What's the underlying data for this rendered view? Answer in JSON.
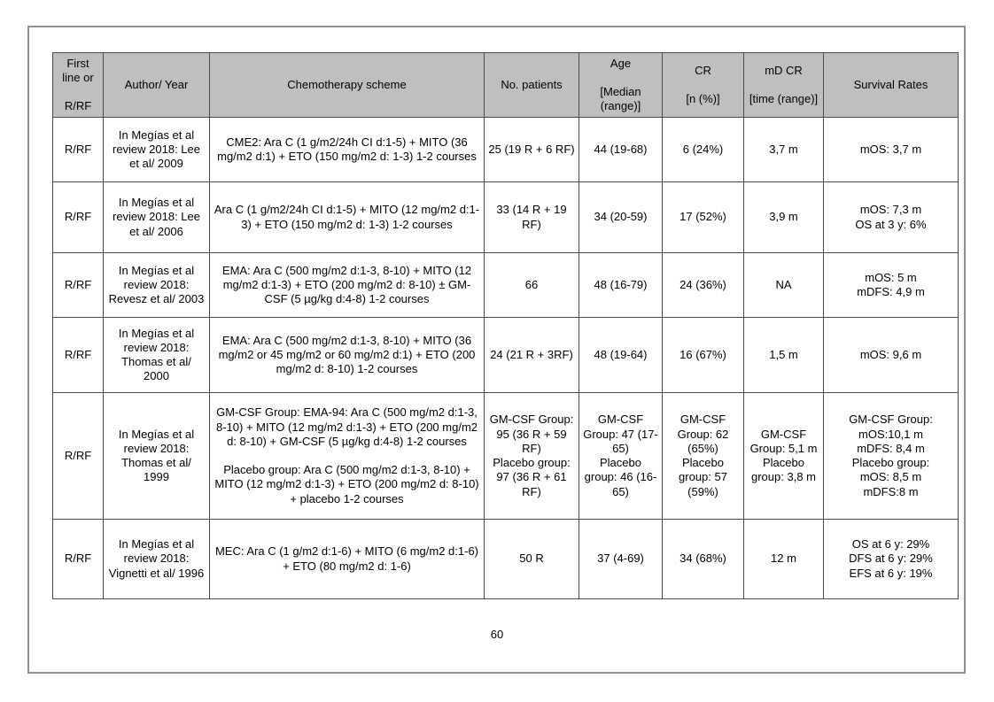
{
  "page": {
    "number": "60"
  },
  "colors": {
    "header_bg": "#bfbfbf",
    "table_border": "#4a4a4a",
    "page_border": "#8f8f8f"
  },
  "table": {
    "columns": [
      {
        "id": "first-line",
        "label_lines": [
          "First line or",
          "",
          "R/RF"
        ]
      },
      {
        "id": "author-year",
        "label_lines": [
          "Author/ Year"
        ]
      },
      {
        "id": "chemo-scheme",
        "label_lines": [
          "Chemotherapy scheme"
        ]
      },
      {
        "id": "no-patients",
        "label_lines": [
          "No. patients"
        ]
      },
      {
        "id": "age",
        "label_lines": [
          "Age",
          "",
          "[Median (range)]"
        ]
      },
      {
        "id": "cr",
        "label_lines": [
          "CR",
          "",
          "[n (%)]"
        ]
      },
      {
        "id": "md-cr",
        "label_lines": [
          "mD CR",
          "",
          "[time (range)]"
        ]
      },
      {
        "id": "survival",
        "label_lines": [
          "Survival Rates"
        ]
      }
    ],
    "rows": [
      {
        "cells": [
          {
            "lines": [
              "R/RF"
            ]
          },
          {
            "lines": [
              "In Megías et al review 2018: Lee et al/ 2009"
            ]
          },
          {
            "lines": [
              "CME2: Ara C (1 g/m2/24h CI d:1-5) + MITO (36 mg/m2 d:1) + ETO (150 mg/m2 d: 1-3) 1-2 courses"
            ]
          },
          {
            "lines": [
              "25 (19 R + 6 RF)"
            ]
          },
          {
            "lines": [
              "44 (19-68)"
            ]
          },
          {
            "lines": [
              "6 (24%)"
            ]
          },
          {
            "lines": [
              "3,7 m"
            ]
          },
          {
            "lines": [
              "mOS: 3,7 m"
            ]
          }
        ]
      },
      {
        "cells": [
          {
            "lines": [
              "R/RF"
            ]
          },
          {
            "lines": [
              "In Megías et al review 2018: Lee et al/ 2006"
            ]
          },
          {
            "lines": [
              "Ara C (1 g/m2/24h CI d:1-5) + MITO (12 mg/m2 d:1-3) + ETO (150 mg/m2 d: 1-3) 1-2 courses"
            ]
          },
          {
            "lines": [
              "33 (14 R + 19 RF)"
            ]
          },
          {
            "lines": [
              "34 (20-59)"
            ]
          },
          {
            "lines": [
              "17 (52%)"
            ]
          },
          {
            "lines": [
              "3,9 m"
            ]
          },
          {
            "lines": [
              "mOS: 7,3 m",
              "OS at 3 y: 6%"
            ]
          }
        ]
      },
      {
        "cells": [
          {
            "lines": [
              "R/RF"
            ]
          },
          {
            "lines": [
              "In Megías et al review 2018: Revesz et al/ 2003"
            ]
          },
          {
            "lines": [
              "EMA: Ara C (500 mg/m2 d:1-3, 8-10) + MITO (12 mg/m2 d:1-3) + ETO (200 mg/m2 d: 8-10) ± GM-CSF (5 µg/kg d:4-8) 1-2 courses"
            ]
          },
          {
            "lines": [
              "66"
            ]
          },
          {
            "lines": [
              "48 (16-79)"
            ]
          },
          {
            "lines": [
              "24 (36%)"
            ]
          },
          {
            "lines": [
              "NA"
            ]
          },
          {
            "lines": [
              "mOS: 5 m",
              "mDFS: 4,9 m"
            ]
          }
        ]
      },
      {
        "cells": [
          {
            "lines": [
              "R/RF"
            ]
          },
          {
            "lines": [
              "In Megías et al review 2018: Thomas et al/ 2000"
            ]
          },
          {
            "lines": [
              "EMA: Ara C (500 mg/m2 d:1-3, 8-10) + MITO (36 mg/m2 or 45 mg/m2 or 60 mg/m2 d:1) + ETO (200 mg/m2 d: 8-10) 1-2 courses"
            ]
          },
          {
            "lines": [
              "24 (21 R + 3RF)"
            ]
          },
          {
            "lines": [
              "48 (19-64)"
            ]
          },
          {
            "lines": [
              "16 (67%)"
            ]
          },
          {
            "lines": [
              "1,5 m"
            ]
          },
          {
            "lines": [
              "mOS: 9,6 m"
            ]
          }
        ]
      },
      {
        "cells": [
          {
            "lines": [
              "R/RF"
            ]
          },
          {
            "lines": [
              "In Megías et al review 2018: Thomas et al/ 1999"
            ]
          },
          {
            "lines": [
              "GM-CSF Group: EMA-94: Ara C (500 mg/m2 d:1-3, 8-10) + MITO (12 mg/m2 d:1-3) + ETO (200 mg/m2 d: 8-10) + GM-CSF (5 µg/kg d:4-8) 1-2 courses",
              "",
              "Placebo group: Ara C (500 mg/m2 d:1-3, 8-10) + MITO (12 mg/m2 d:1-3) + ETO (200 mg/m2 d: 8-10) + placebo 1-2 courses"
            ]
          },
          {
            "lines": [
              "GM-CSF Group: 95 (36 R + 59 RF)",
              "Placebo group: 97 (36 R + 61 RF)"
            ]
          },
          {
            "lines": [
              "GM-CSF Group: 47 (17-65)",
              "Placebo group: 46 (16-65)"
            ]
          },
          {
            "lines": [
              "GM-CSF Group: 62 (65%)",
              "Placebo group: 57 (59%)"
            ]
          },
          {
            "lines": [
              "GM-CSF Group: 5,1 m",
              "Placebo group: 3,8 m"
            ]
          },
          {
            "align": "right",
            "lines": [
              "GM-CSF Group:",
              "mOS:10,1 m",
              "mDFS: 8,4 m",
              "Placebo group:",
              "mOS: 8,5 m",
              "mDFS:8 m"
            ]
          }
        ]
      },
      {
        "cells": [
          {
            "lines": [
              "R/RF"
            ]
          },
          {
            "lines": [
              "In Megías et al review 2018: Vignetti et al/ 1996"
            ]
          },
          {
            "lines": [
              "MEC: Ara C (1 g/m2 d:1-6) + MITO (6 mg/m2 d:1-6) + ETO (80 mg/m2 d: 1-6)"
            ]
          },
          {
            "lines": [
              "50 R"
            ]
          },
          {
            "lines": [
              "37 (4-69)"
            ]
          },
          {
            "lines": [
              "34 (68%)"
            ]
          },
          {
            "lines": [
              "12 m"
            ]
          },
          {
            "align": "right",
            "lines": [
              "OS at 6 y: 29%",
              "DFS at 6 y: 29%",
              "EFS at 6 y: 19%"
            ]
          }
        ]
      }
    ]
  }
}
